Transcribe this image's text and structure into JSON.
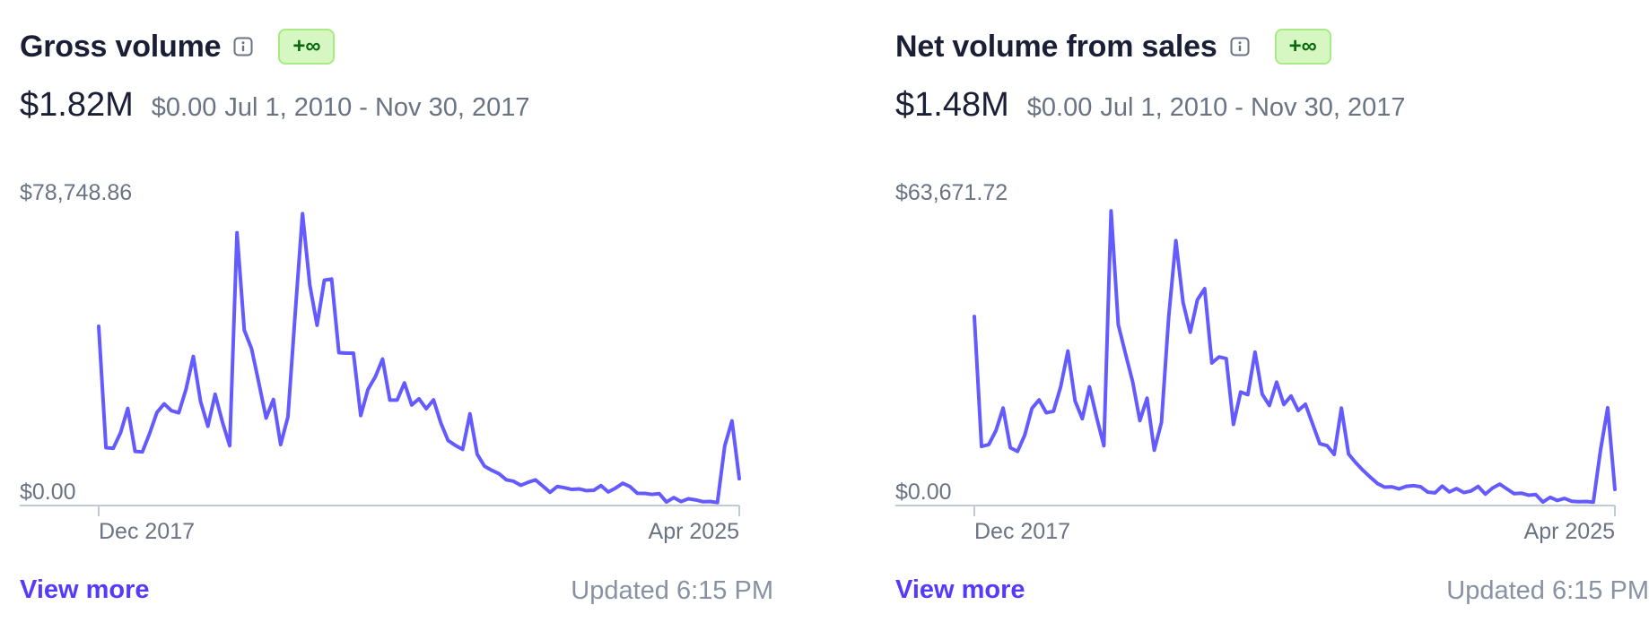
{
  "cards": [
    {
      "title": "Gross volume",
      "badge": "+∞",
      "total": "$1.82M",
      "compare_value": "$0.00",
      "compare_range": "Jul 1, 2010 - Nov 30, 2017",
      "view_more": "View more",
      "updated": "Updated 6:15 PM"
    },
    {
      "title": "Net volume from sales",
      "badge": "+∞",
      "total": "$1.48M",
      "compare_value": "$0.00",
      "compare_range": "Jul 1, 2010 - Nov 30, 2017",
      "view_more": "View more",
      "updated": "Updated 6:15 PM"
    }
  ],
  "colors": {
    "line": "#635bff",
    "axis": "#c1c9d2",
    "tick_text": "#6a7383",
    "badge_bg": "#d7f7c2",
    "badge_text": "#05690d",
    "link": "#533afd"
  },
  "chart_data": [
    {
      "type": "line",
      "title": "Gross volume",
      "ylim": [
        0,
        78748.86
      ],
      "y_tick_labels": [
        "$0.00",
        "$78,748.86"
      ],
      "x_tick_labels": [
        "Dec 2017",
        "Apr 2025"
      ],
      "x_range": [
        "Dec 2017",
        "Apr 2025"
      ],
      "grid": false,
      "series": [
        {
          "values": [
            47180,
            15050,
            14900,
            19000,
            25470,
            14080,
            13950,
            18860,
            24380,
            26660,
            24850,
            24290,
            30550,
            39220,
            27250,
            20740,
            29210,
            21840,
            15590,
            71950,
            46200,
            41270,
            32220,
            22920,
            27840,
            15880,
            23260,
            50680,
            77000,
            58150,
            47460,
            59390,
            59700,
            40200,
            40100,
            40100,
            23570,
            30520,
            33820,
            38520,
            27670,
            27670,
            32220,
            26370,
            28000,
            25380,
            27730,
            21620,
            16970,
            15670,
            14620,
            24030,
            13330,
            10170,
            9080,
            8170,
            6560,
            6180,
            5110,
            5910,
            6560,
            4930,
            3250,
            4800,
            4460,
            4020,
            4160,
            3700,
            3790,
            5030,
            3350,
            4370,
            5650,
            4750,
            3000,
            2980,
            2710,
            2910,
            700,
            1860,
            800,
            1540,
            1250,
            780,
            840,
            550,
            15480,
            22160,
            6860
          ]
        }
      ]
    },
    {
      "type": "line",
      "title": "Net volume from sales",
      "ylim": [
        0,
        63671.72
      ],
      "y_tick_labels": [
        "$0.00",
        "$63,671.72"
      ],
      "x_tick_labels": [
        "Dec 2017",
        "Apr 2025"
      ],
      "x_range": [
        "Dec 2017",
        "Apr 2025"
      ],
      "grid": false,
      "series": [
        {
          "values": [
            40260,
            12450,
            12830,
            15830,
            20670,
            12180,
            11380,
            14840,
            20580,
            22410,
            19660,
            19980,
            25230,
            32850,
            22180,
            18380,
            25210,
            18610,
            12620,
            62860,
            38490,
            32300,
            26280,
            17980,
            22780,
            11650,
            17600,
            40080,
            56470,
            43290,
            36880,
            43850,
            46200,
            30310,
            31600,
            31240,
            17160,
            24090,
            23520,
            32630,
            23630,
            21210,
            26220,
            21420,
            23240,
            20130,
            21490,
            17250,
            13030,
            12630,
            10730,
            20650,
            10810,
            8960,
            7340,
            5890,
            4520,
            3740,
            3810,
            3360,
            3900,
            4060,
            3820,
            2680,
            2510,
            3960,
            2720,
            3430,
            2580,
            2910,
            3890,
            2260,
            3550,
            4390,
            3350,
            2340,
            2450,
            2020,
            2160,
            560,
            1560,
            890,
            1330,
            720,
            620,
            670,
            530,
            11650,
            20730,
            3250
          ]
        }
      ]
    }
  ]
}
